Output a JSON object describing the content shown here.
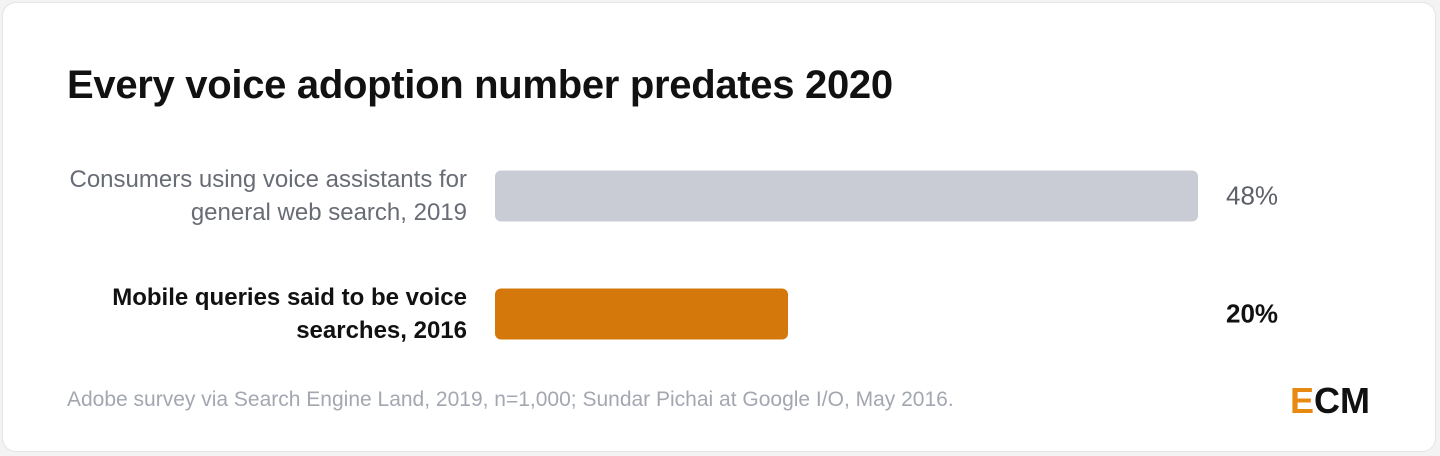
{
  "chart_data": {
    "type": "bar",
    "orientation": "horizontal",
    "title": "Every voice adoption number predates 2020",
    "categories": [
      "Consumers using voice assistants for general web search, 2019",
      "Mobile queries said to be voice searches, 2016"
    ],
    "values": [
      48,
      20
    ],
    "value_labels": [
      "48%",
      "20%"
    ],
    "colors": [
      "#c9ccd4",
      "#d4780c"
    ],
    "highlight": 1,
    "source": "Adobe survey via Search Engine Land, 2019, n=1,000; Sundar Pichai at Google I/O, May 2016.",
    "logo": "ECM"
  }
}
